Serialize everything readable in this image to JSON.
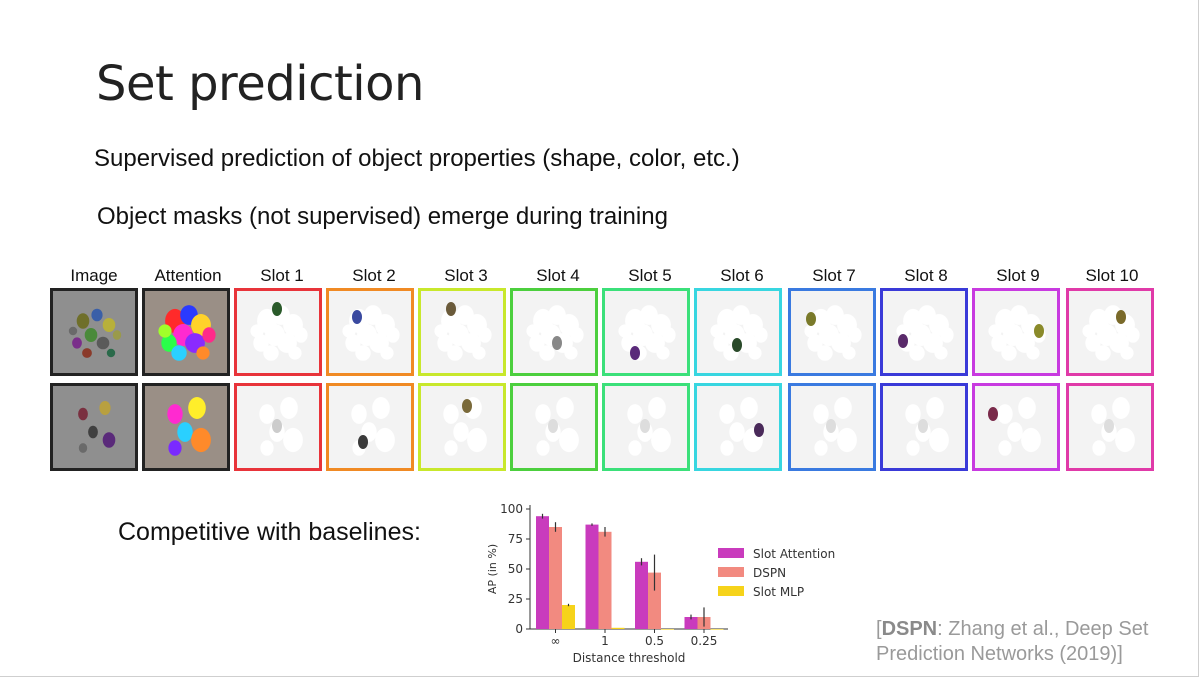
{
  "slide": {
    "title": "Set prediction",
    "bullets": [
      "Supervised prediction of object properties (shape, color, etc.)",
      "Object masks (not supervised) emerge during training",
      "Competitive with baselines:"
    ],
    "citation_open": "[",
    "citation_bold": "DSPN",
    "citation_rest": ": Zhang et al., Deep Set",
    "citation_line2": "Prediction Networks (2019)]"
  },
  "grid": {
    "headers": [
      "Image",
      "Attention",
      "Slot 1",
      "Slot 2",
      "Slot 3",
      "Slot 4",
      "Slot 5",
      "Slot 6",
      "Slot 7",
      "Slot 8",
      "Slot 9",
      "Slot 10"
    ],
    "border_colors": [
      "#222222",
      "#222222",
      "#e8343a",
      "#f08a24",
      "#c8e82c",
      "#4ccf3e",
      "#3be07a",
      "#38d6e0",
      "#3a7ae0",
      "#3a3ad8",
      "#c83ae0",
      "#e03aa8"
    ]
  },
  "chart_data": {
    "type": "bar",
    "categories": [
      "∞",
      "1",
      "0.5",
      "0.25"
    ],
    "series": [
      {
        "name": "Slot Attention",
        "values": [
          94,
          87,
          56,
          10
        ],
        "color": "#c93bbd"
      },
      {
        "name": "DSPN",
        "values": [
          85,
          81,
          47,
          10
        ],
        "color": "#f28a80"
      },
      {
        "name": "Slot MLP",
        "values": [
          20,
          1,
          0,
          0
        ],
        "color": "#f6d31a"
      }
    ],
    "xlabel": "Distance threshold",
    "ylabel": "AP (in %)",
    "ylim": [
      0,
      100
    ],
    "yticks": [
      "0",
      "25",
      "50",
      "75",
      "100"
    ],
    "legend": "right"
  }
}
